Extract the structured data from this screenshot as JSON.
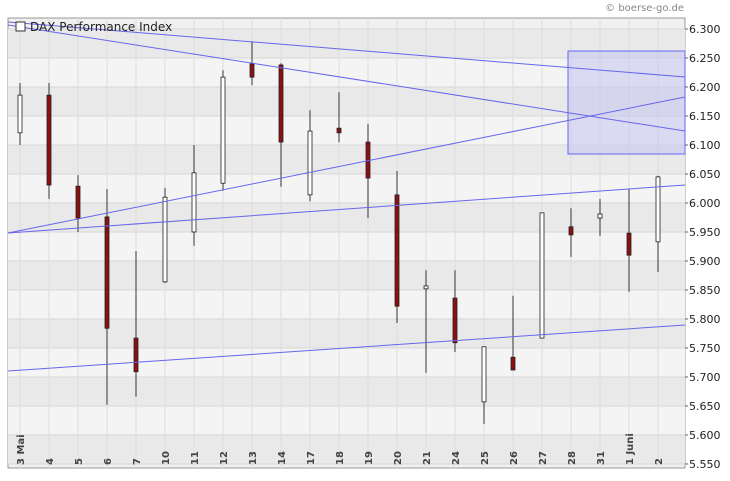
{
  "chart_data": {
    "type": "candlestick",
    "title": "DAX Performance Index",
    "source": "© boerse-go.de",
    "categories": [
      "3 Mai",
      "4",
      "5",
      "6",
      "7",
      "10",
      "11",
      "12",
      "13",
      "14",
      "17",
      "18",
      "19",
      "20",
      "21",
      "24",
      "25",
      "26",
      "27",
      "28",
      "31",
      "1 Juni",
      "2"
    ],
    "open": [
      6121,
      6186,
      6029,
      5976,
      5767,
      5864,
      5950,
      6034,
      6240,
      6238,
      6014,
      6129,
      6105,
      6014,
      5852,
      5836,
      5657,
      5734,
      5767,
      5959,
      5974,
      5948,
      5933
    ],
    "high": [
      6207,
      6207,
      6048,
      6024,
      5917,
      6026,
      6100,
      6229,
      6279,
      6241,
      6160,
      6191,
      6136,
      6055,
      5884,
      5884,
      5752,
      5840,
      5983,
      5991,
      6007,
      6024,
      6047
    ],
    "low": [
      6100,
      6007,
      5950,
      5652,
      5666,
      5862,
      5926,
      6021,
      6203,
      6028,
      6003,
      6105,
      5974,
      5793,
      5707,
      5743,
      5619,
      5712,
      5767,
      5907,
      5943,
      5847,
      5881
    ],
    "close": [
      6186,
      6031,
      5974,
      5784,
      5709,
      6010,
      6052,
      6217,
      6217,
      6105,
      6124,
      6121,
      6043,
      5822,
      5857,
      5759,
      5752,
      5712,
      5983,
      5945,
      5981,
      5910,
      6045
    ],
    "up_color": "#ffffff",
    "down_color": "#8b1010",
    "ylim": [
      5543,
      6319
    ],
    "yticks": [
      {
        "value": 5550,
        "label": "5.550"
      },
      {
        "value": 5600,
        "label": "5.600"
      },
      {
        "value": 5650,
        "label": "5.650"
      },
      {
        "value": 5700,
        "label": "5.700"
      },
      {
        "value": 5750,
        "label": "5.750"
      },
      {
        "value": 5800,
        "label": "5.800"
      },
      {
        "value": 5850,
        "label": "5.850"
      },
      {
        "value": 5900,
        "label": "5.900"
      },
      {
        "value": 5950,
        "label": "5.950"
      },
      {
        "value": 6000,
        "label": "6.000"
      },
      {
        "value": 6050,
        "label": "6.050"
      },
      {
        "value": 6100,
        "label": "6.100"
      },
      {
        "value": 6150,
        "label": "6.150"
      },
      {
        "value": 6200,
        "label": "6.200"
      },
      {
        "value": 6250,
        "label": "6.250"
      },
      {
        "value": 6300,
        "label": "6.300"
      }
    ],
    "grid": true
  }
}
